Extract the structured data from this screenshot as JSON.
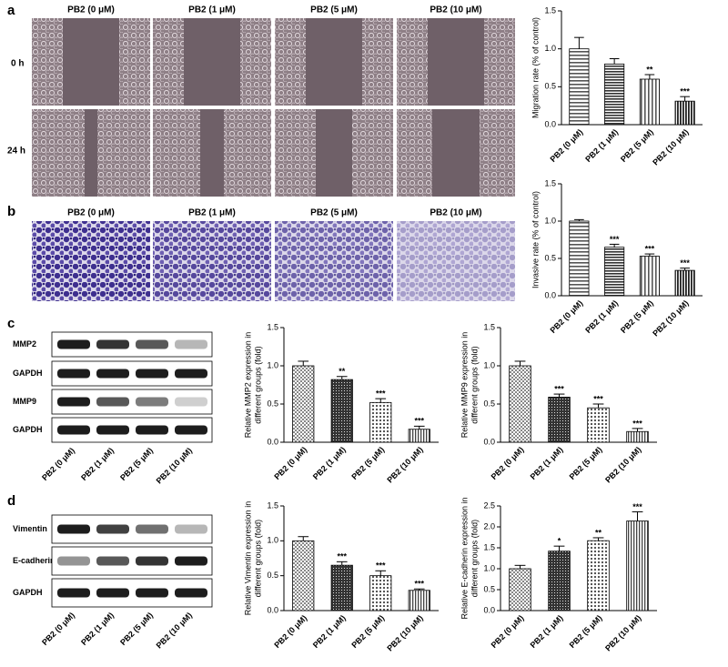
{
  "panel_labels": [
    "a",
    "b",
    "c",
    "d"
  ],
  "migration_images": {
    "columns": [
      "PB2 (0 μM)",
      "PB2 (1 μM)",
      "PB2 (5 μM)",
      "PB2 (10 μM)"
    ],
    "rows": [
      "0 h",
      "24 h"
    ]
  },
  "invasion_images": {
    "columns": [
      "PB2 (0 μM)",
      "PB2 (1 μM)",
      "PB2 (5 μM)",
      "PB2 (10 μM)"
    ]
  },
  "blot_c": {
    "rows": [
      "MMP2",
      "GAPDH",
      "MMP9",
      "GAPDH"
    ],
    "lanes": [
      "PB2 (0 μM)",
      "PB2 (1 μM)",
      "PB2 (5 μM)",
      "PB2 (10 μM)"
    ]
  },
  "blot_d": {
    "rows": [
      "Vimentin",
      "E-cadherin",
      "GAPDH"
    ],
    "lanes": [
      "PB2 (0 μM)",
      "PB2 (1 μM)",
      "PB2 (5 μM)",
      "PB2 (10 μM)"
    ]
  },
  "chart_data": [
    {
      "type": "bar",
      "ylabel": [
        "Migration rate (% of control)"
      ],
      "categories": [
        "PB2 (0 μM)",
        "PB2 (1 μM)",
        "PB2 (5 μM)",
        "PB2 (10 μM)"
      ],
      "values": [
        1.0,
        0.8,
        0.6,
        0.31
      ],
      "errors": [
        0.15,
        0.07,
        0.06,
        0.06
      ],
      "annotations": [
        null,
        null,
        "**",
        "***"
      ],
      "ylim": [
        0,
        1.5
      ],
      "yticks": [
        {
          "value": 0,
          "label": "0.0"
        },
        0.5,
        {
          "value": 1,
          "label": "1.0"
        },
        1.5
      ]
    },
    {
      "type": "bar",
      "ylabel": [
        "Invasive rate (% of control)"
      ],
      "categories": [
        "PB2 (0 μM)",
        "PB2 (1 μM)",
        "PB2 (5 μM)",
        "PB2 (10 μM)"
      ],
      "values": [
        1.0,
        0.65,
        0.53,
        0.34
      ],
      "errors": [
        0.02,
        0.04,
        0.03,
        0.03
      ],
      "annotations": [
        null,
        "***",
        "***",
        "***"
      ],
      "ylim": [
        0,
        1.5
      ],
      "yticks": [
        {
          "value": 0,
          "label": "0.0"
        },
        0.5,
        {
          "value": 1,
          "label": "1.0"
        },
        1.5
      ]
    },
    {
      "type": "bar",
      "ylabel": [
        "Relative MMP2 expression in",
        "different groups (fold)"
      ],
      "categories": [
        "PB2 (0 μM)",
        "PB2 (1 μM)",
        "PB2 (5 μM)",
        "PB2 (10 μM)"
      ],
      "values": [
        1.0,
        0.82,
        0.52,
        0.17
      ],
      "errors": [
        0.06,
        0.04,
        0.05,
        0.04
      ],
      "annotations": [
        null,
        "**",
        "***",
        "***"
      ],
      "ylim": [
        0,
        1.5
      ],
      "yticks": [
        {
          "value": 0,
          "label": "0.0"
        },
        0.5,
        {
          "value": 1,
          "label": "1.0"
        },
        1.5
      ]
    },
    {
      "type": "bar",
      "ylabel": [
        "Relative MMP9 expression in",
        "different groups (fold)"
      ],
      "categories": [
        "PB2 (0 μM)",
        "PB2 (1 μM)",
        "PB2 (5 μM)",
        "PB2 (10 μM)"
      ],
      "values": [
        1.0,
        0.59,
        0.45,
        0.14
      ],
      "errors": [
        0.06,
        0.04,
        0.05,
        0.04
      ],
      "annotations": [
        null,
        "***",
        "***",
        "***"
      ],
      "ylim": [
        0,
        1.5
      ],
      "yticks": [
        {
          "value": 0,
          "label": "0.0"
        },
        0.5,
        {
          "value": 1,
          "label": "1.0"
        },
        1.5
      ]
    },
    {
      "type": "bar",
      "ylabel": [
        "Relative Vimentin expression in",
        "different groups (fold)"
      ],
      "categories": [
        "PB2 (0 μM)",
        "PB2 (1 μM)",
        "PB2 (5 μM)",
        "PB2 (10 μM)"
      ],
      "values": [
        1.0,
        0.65,
        0.5,
        0.29
      ],
      "errors": [
        0.06,
        0.05,
        0.07,
        0.02
      ],
      "annotations": [
        null,
        "***",
        "***",
        "***"
      ],
      "ylim": [
        0,
        1.5
      ],
      "yticks": [
        {
          "value": 0,
          "label": "0.0"
        },
        0.5,
        {
          "value": 1,
          "label": "1.0"
        },
        1.5
      ]
    },
    {
      "type": "bar",
      "ylabel": [
        "Relative E-cadherin expression in",
        "different groups (fold)"
      ],
      "categories": [
        "PB2 (0 μM)",
        "PB2 (1 μM)",
        "PB2 (5 μM)",
        "PB2 (10 μM)"
      ],
      "values": [
        1.0,
        1.42,
        1.67,
        2.14
      ],
      "errors": [
        0.08,
        0.12,
        0.07,
        0.22
      ],
      "annotations": [
        null,
        "*",
        "**",
        "***"
      ],
      "ylim": [
        0,
        2.5
      ],
      "yticks": [
        {
          "value": 0,
          "label": "0.0"
        },
        0.5,
        {
          "value": 1,
          "label": "1.0"
        },
        1.5,
        {
          "value": 2,
          "label": "2.0"
        },
        2.5
      ]
    }
  ]
}
